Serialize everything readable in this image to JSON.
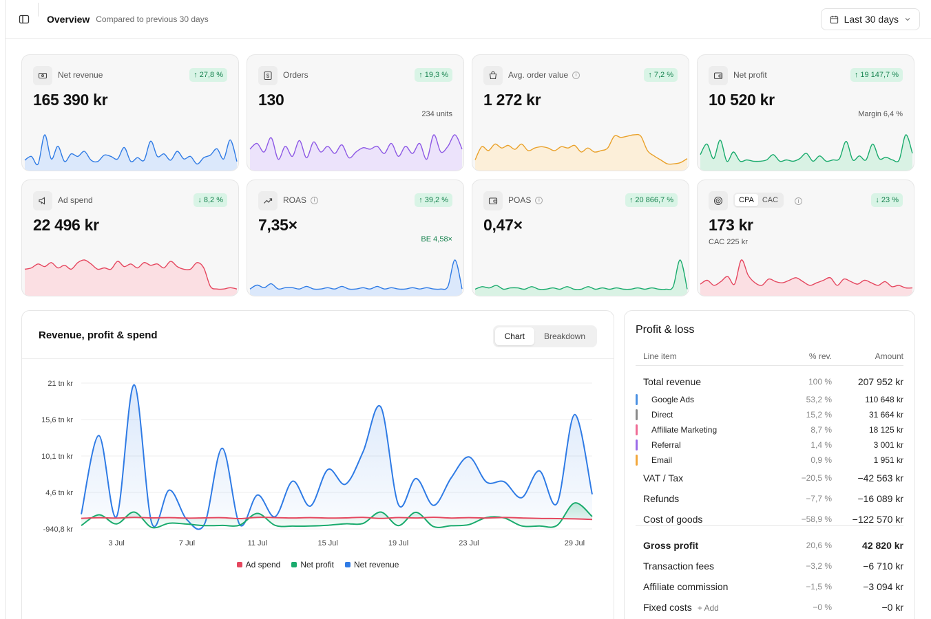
{
  "header": {
    "title": "Overview",
    "subtitle": "Compared to previous 30 days",
    "date_range": "Last 30 days"
  },
  "kpis": [
    {
      "label": "Net revenue",
      "value": "165 390 kr",
      "delta": "27,8 %",
      "direction": "up",
      "icon": "banknote-icon",
      "color": "#2f7be5",
      "fill": "#dbe8fb",
      "spark": [
        12,
        18,
        6,
        52,
        14,
        34,
        10,
        22,
        18,
        26,
        12,
        10,
        20,
        18,
        14,
        32,
        10,
        16,
        12,
        42,
        18,
        22,
        12,
        26,
        14,
        18,
        6,
        16,
        20,
        30,
        14,
        44,
        10
      ]
    },
    {
      "label": "Orders",
      "value": "130",
      "sub": "234 units",
      "delta": "19,3 %",
      "direction": "up",
      "icon": "dollar-icon",
      "color": "#8e5ae5",
      "fill": "#ece3fb",
      "spark": [
        26,
        34,
        22,
        42,
        12,
        30,
        16,
        38,
        14,
        36,
        22,
        30,
        20,
        32,
        14,
        22,
        28,
        26,
        30,
        20,
        34,
        16,
        30,
        20,
        34,
        12,
        46,
        22,
        30,
        46,
        26
      ]
    },
    {
      "label": "Avg. order value",
      "value": "1 272 kr",
      "delta": "7,2 %",
      "direction": "up",
      "icon": "cart-icon",
      "color": "#e9a12a",
      "fill": "#fcefd9",
      "spark": [
        12,
        32,
        26,
        36,
        30,
        34,
        28,
        36,
        26,
        30,
        32,
        30,
        26,
        32,
        30,
        34,
        24,
        30,
        24,
        26,
        30,
        48,
        46,
        48,
        50,
        48,
        26,
        18,
        12,
        6,
        6,
        8,
        14
      ]
    },
    {
      "label": "Net profit",
      "value": "10 520 kr",
      "sub": "Margin 6,4 %",
      "delta": "19 147,7 %",
      "direction": "up",
      "icon": "wallet-icon",
      "color": "#1aab6d",
      "fill": "#d9f2e4",
      "spark": [
        20,
        36,
        14,
        42,
        10,
        24,
        10,
        12,
        10,
        10,
        12,
        20,
        10,
        12,
        10,
        14,
        22,
        10,
        18,
        10,
        12,
        14,
        40,
        12,
        18,
        12,
        36,
        14,
        16,
        12,
        12,
        50,
        22
      ]
    },
    {
      "label": "Ad spend",
      "value": "22 496 kr",
      "delta": "8,2 %",
      "direction": "down",
      "icon": "megaphone-icon",
      "color": "#e5475f",
      "fill": "#fbdfe3",
      "spark": [
        36,
        38,
        44,
        40,
        46,
        38,
        42,
        36,
        46,
        50,
        44,
        36,
        38,
        36,
        48,
        40,
        44,
        38,
        46,
        42,
        44,
        38,
        48,
        40,
        36,
        36,
        46,
        38,
        10,
        6,
        6,
        8,
        6
      ]
    },
    {
      "label": "ROAS",
      "value": "7,35×",
      "sub": "BE 4,58×",
      "delta": "39,2 %",
      "direction": "up",
      "icon": "trending-up-icon",
      "color": "#2f7be5",
      "fill": "#dbe8fb",
      "spark": [
        6,
        12,
        8,
        14,
        6,
        8,
        8,
        6,
        10,
        6,
        6,
        8,
        6,
        10,
        6,
        6,
        8,
        6,
        10,
        6,
        8,
        6,
        6,
        8,
        6,
        8,
        6,
        6,
        10,
        50,
        6
      ]
    },
    {
      "label": "POAS",
      "value": "0,47×",
      "delta": "20 866,7 %",
      "direction": "up",
      "icon": "wallet-icon",
      "color": "#1aab6d",
      "fill": "#d9f2e4",
      "spark": [
        6,
        10,
        8,
        12,
        6,
        8,
        8,
        6,
        10,
        6,
        6,
        8,
        6,
        10,
        6,
        6,
        10,
        6,
        8,
        6,
        8,
        6,
        6,
        8,
        6,
        8,
        6,
        6,
        10,
        52,
        6
      ]
    },
    {
      "label": "",
      "value": "173 kr",
      "sub": "CAC 225 kr",
      "delta": "23 %",
      "direction": "down",
      "icon": "target-icon",
      "color": "#e5475f",
      "fill": "#fbdfe3",
      "toggle": [
        "CPA",
        "CAC"
      ],
      "active_toggle": "CPA",
      "spark": [
        14,
        20,
        12,
        18,
        26,
        14,
        52,
        28,
        16,
        12,
        22,
        18,
        16,
        20,
        24,
        18,
        12,
        16,
        20,
        24,
        12,
        22,
        18,
        14,
        20,
        16,
        12,
        18,
        10,
        12,
        8,
        8
      ]
    }
  ],
  "chart": {
    "title": "Revenue, profit & spend",
    "tabs": [
      "Chart",
      "Breakdown"
    ],
    "active_tab": "Chart"
  },
  "chart_data": {
    "type": "line",
    "x": [
      "1 Jul",
      "2 Jul",
      "3 Jul",
      "4 Jul",
      "5 Jul",
      "6 Jul",
      "7 Jul",
      "8 Jul",
      "9 Jul",
      "10 Jul",
      "11 Jul",
      "12 Jul",
      "13 Jul",
      "14 Jul",
      "15 Jul",
      "16 Jul",
      "17 Jul",
      "18 Jul",
      "19 Jul",
      "20 Jul",
      "21 Jul",
      "22 Jul",
      "23 Jul",
      "24 Jul",
      "25 Jul",
      "26 Jul",
      "27 Jul",
      "28 Jul",
      "29 Jul",
      "30 Jul"
    ],
    "x_ticks": [
      "3 Jul",
      "7 Jul",
      "11 Jul",
      "15 Jul",
      "19 Jul",
      "23 Jul",
      "29 Jul"
    ],
    "y_ticks": [
      "21 tn kr",
      "15,6 tn kr",
      "10,1 tn kr",
      "4,6 tn kr",
      "-940,8 kr"
    ],
    "ylim": [
      -940.8,
      21000
    ],
    "series": [
      {
        "name": "Ad spend",
        "color": "#e5475f",
        "values": [
          650,
          740,
          690,
          790,
          710,
          760,
          680,
          720,
          750,
          610,
          800,
          760,
          700,
          760,
          690,
          720,
          790,
          630,
          770,
          700,
          810,
          690,
          760,
          690,
          780,
          700,
          640,
          610,
          570,
          480
        ]
      },
      {
        "name": "Net profit",
        "color": "#1aab6d",
        "values": [
          -430,
          1180,
          -190,
          1590,
          -710,
          -80,
          -220,
          -440,
          -410,
          -370,
          1390,
          -400,
          -520,
          -500,
          -390,
          -170,
          -110,
          1590,
          -440,
          1550,
          -600,
          -460,
          -300,
          770,
          710,
          -500,
          -500,
          -420,
          2960,
          930
        ]
      },
      {
        "name": "Net revenue",
        "color": "#2f7be5",
        "values": [
          1270,
          13100,
          880,
          20740,
          -40,
          4910,
          440,
          -170,
          11200,
          -320,
          4160,
          890,
          6240,
          2480,
          8000,
          5790,
          10700,
          17410,
          2710,
          6650,
          2600,
          6760,
          9900,
          6110,
          6160,
          3760,
          7800,
          2890,
          16260,
          4260
        ]
      }
    ]
  },
  "pl": {
    "title": "Profit & loss",
    "head": {
      "item": "Line item",
      "pct": "% rev.",
      "amount": "Amount"
    },
    "rows": [
      {
        "name": "Total revenue",
        "pct": "100 %",
        "amount": "207 952 kr",
        "kind": "total"
      },
      {
        "name": "Google Ads",
        "pct": "53,2 %",
        "amount": "110 648 kr",
        "kind": "sub",
        "color": "#4a90e2"
      },
      {
        "name": "Direct",
        "pct": "15,2 %",
        "amount": "31 664 kr",
        "kind": "sub",
        "color": "#8a8a8a"
      },
      {
        "name": "Affiliate Marketing",
        "pct": "8,7 %",
        "amount": "18 125 kr",
        "kind": "sub",
        "color": "#ef6c95"
      },
      {
        "name": "Referral",
        "pct": "1,4 %",
        "amount": "3 001 kr",
        "kind": "sub",
        "color": "#9b6be8"
      },
      {
        "name": "Email",
        "pct": "0,9 %",
        "amount": "1 951 kr",
        "kind": "sub",
        "color": "#f2a73b"
      },
      {
        "name": "VAT / Tax",
        "pct": "−20,5 %",
        "amount": "−42 563 kr",
        "kind": "row"
      },
      {
        "name": "Refunds",
        "pct": "−7,7 %",
        "amount": "−16 089 kr",
        "kind": "row"
      },
      {
        "name": "Cost of goods",
        "pct": "−58,9 %",
        "amount": "−122 570 kr",
        "kind": "row"
      },
      {
        "name": "Gross profit",
        "pct": "20,6 %",
        "amount": "42 820 kr",
        "kind": "bold"
      },
      {
        "name": "Transaction fees",
        "pct": "−3,2 %",
        "amount": "−6 710 kr",
        "kind": "row"
      },
      {
        "name": "Affiliate commission",
        "pct": "−1,5 %",
        "amount": "−3 094 kr",
        "kind": "row"
      },
      {
        "name": "Fixed costs",
        "pct": "−0 %",
        "amount": "−0 kr",
        "kind": "row",
        "add": "+ Add"
      }
    ]
  }
}
